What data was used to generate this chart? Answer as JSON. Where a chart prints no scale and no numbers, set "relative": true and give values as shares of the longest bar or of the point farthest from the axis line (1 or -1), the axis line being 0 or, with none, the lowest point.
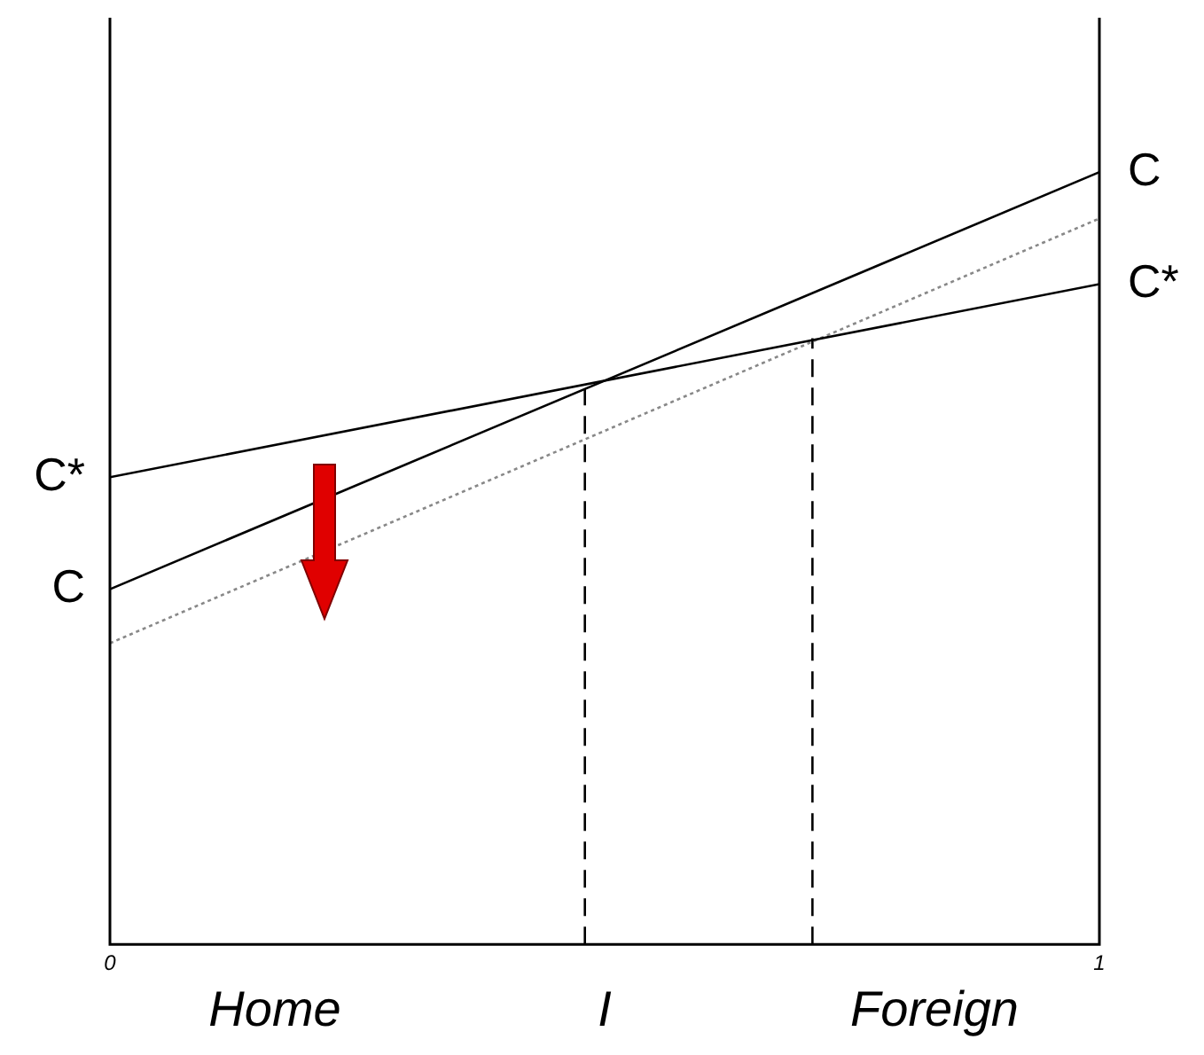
{
  "chart_data": {
    "type": "line",
    "relative": true,
    "xlim": [
      0,
      1
    ],
    "xticks": [
      0,
      1
    ],
    "legend": false,
    "marker": "none",
    "series": [
      {
        "name": "C",
        "color": "#000000",
        "x": [
          0,
          1
        ],
        "values": [
          0.46,
          1.0
        ]
      },
      {
        "name": "C*",
        "color": "#000000",
        "x": [
          0,
          1
        ],
        "values": [
          0.605,
          0.855
        ]
      },
      {
        "color": "#888888",
        "x": [
          0,
          1
        ],
        "values": [
          0.39,
          0.94
        ],
        "line_style": "dotted"
      },
      {
        "color": "#000000",
        "x": [
          0.48,
          0.48
        ],
        "values": [
          0,
          0.72
        ],
        "line_style": "dashed"
      },
      {
        "color": "#000000",
        "x": [
          0.71,
          0.71
        ],
        "values": [
          0,
          0.785
        ],
        "line_style": "dashed"
      }
    ],
    "annotations": [
      "Home",
      "I",
      "Foreign"
    ]
  }
}
